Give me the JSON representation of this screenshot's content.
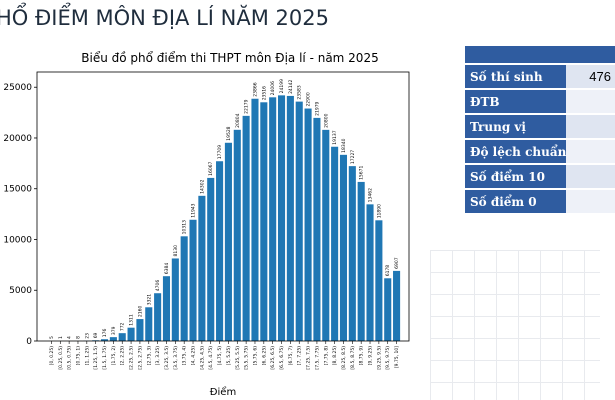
{
  "page_title": "HỔ ĐIỂM MÔN ĐỊA LÍ NĂM 2025",
  "stats": [
    {
      "label": "",
      "value": ""
    },
    {
      "label": "Số thí sinh",
      "value": "476"
    },
    {
      "label": "ĐTB",
      "value": ""
    },
    {
      "label": "Trung vị",
      "value": ""
    },
    {
      "label": "Độ lệch chuẩn",
      "value": ""
    },
    {
      "label": "Số điểm 10",
      "value": ""
    },
    {
      "label": "Số điểm 0",
      "value": ""
    }
  ],
  "colors": {
    "bar": "#1f77b4",
    "table_header": "#2f5ca0"
  },
  "chart_data": {
    "type": "bar",
    "title": "Biểu đồ phổ điểm thi THPT môn Địa lí - năm 2025",
    "xlabel": "Điểm",
    "ylabel": "",
    "ylim": [
      0,
      26500
    ],
    "yticks": [
      0,
      5000,
      10000,
      15000,
      20000,
      25000
    ],
    "ytick_labels": [
      "0",
      "5000",
      "10000",
      "15000",
      "20000",
      "25000"
    ],
    "categories": [
      "[0, 0.25)",
      "[0.25, 0.5)",
      "[0.5, 0.75)",
      "[0.75, 1)",
      "[1, 1.25)",
      "[1.25, 1.5)",
      "[1.5, 1.75)",
      "[1.75, 2)",
      "[2, 2.25)",
      "[2.25, 2.5)",
      "[2.5, 2.75)",
      "[2.75, 3)",
      "[3, 3.25)",
      "[3.25, 3.5)",
      "[3.5, 3.75)",
      "[3.75, 4)",
      "[4, 4.25)",
      "[4.25, 4.5)",
      "[4.5, 4.75)",
      "[4.75, 5)",
      "[5, 5.25)",
      "[5.25, 5.5)",
      "[5.5, 5.75)",
      "[5.75, 6)",
      "[6, 6.25)",
      "[6.25, 6.5)",
      "[6.5, 6.75)",
      "[6.75, 7)",
      "[7, 7.25)",
      "[7.25, 7.5)",
      "[7.5, 7.75)",
      "[7.75, 8)",
      "[8, 8.25)",
      "[8.25, 8.5)",
      "[8.5, 8.75)",
      "[8.75, 9)",
      "[9, 9.25)",
      "[9.25, 9.5)",
      "[9.5, 9.75)",
      "[9.75, 10]"
    ],
    "values": [
      5,
      1,
      4,
      8,
      23,
      69,
      176,
      379,
      772,
      1311,
      2160,
      3321,
      4706,
      6384,
      8130,
      10313,
      11943,
      14302,
      16067,
      17709,
      19528,
      20804,
      22179,
      23866,
      23516,
      24006,
      24199,
      24142,
      23583,
      22900,
      21979,
      20800,
      19137,
      18340,
      17227,
      15671,
      13462,
      11890,
      6178,
      6907
    ],
    "value_labels": [
      "5",
      "1",
      "4",
      "8",
      "23",
      "69",
      "176",
      "379",
      "772",
      "1311",
      "2160",
      "3321",
      "4706",
      "6384",
      "8130",
      "10313",
      "11943",
      "14302",
      "16067",
      "17709",
      "19528",
      "20804",
      "22179",
      "23866",
      "23516",
      "24006",
      "24199",
      "24142",
      "23583",
      "22900",
      "21979",
      "20800",
      "19137",
      "18340",
      "17227",
      "15671",
      "13462",
      "11890",
      "6178",
      "6907"
    ]
  }
}
